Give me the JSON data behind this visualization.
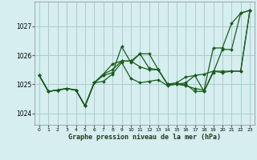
{
  "bg_color": "#d6eef0",
  "grid_color": "#aacccc",
  "line_color": "#1a5c1a",
  "xlabel": "Graphe pression niveau de la mer (hPa)",
  "xlim": [
    -0.5,
    23.5
  ],
  "ylim": [
    1023.6,
    1027.85
  ],
  "yticks": [
    1024,
    1025,
    1026,
    1027
  ],
  "series": [
    [
      1025.3,
      1024.75,
      1024.8,
      1024.85,
      1024.8,
      1024.25,
      1025.05,
      1025.3,
      1025.4,
      1026.3,
      1025.75,
      1026.05,
      1026.05,
      1025.5,
      1025.0,
      1025.0,
      1024.95,
      1024.85,
      1024.8,
      1026.25,
      1026.25,
      1027.1,
      1027.45,
      1027.55
    ],
    [
      1025.3,
      1024.75,
      1024.8,
      1024.85,
      1024.8,
      1024.25,
      1025.05,
      1025.35,
      1025.5,
      1025.8,
      1025.8,
      1026.05,
      1025.55,
      1025.5,
      1025.0,
      1025.0,
      1025.05,
      1025.3,
      1024.75,
      1025.4,
      1026.2,
      1026.2,
      1027.45,
      1027.55
    ],
    [
      1025.3,
      1024.75,
      1024.8,
      1024.85,
      1024.8,
      1024.25,
      1025.05,
      1025.35,
      1025.7,
      1025.8,
      1025.8,
      1025.6,
      1025.5,
      1025.5,
      1025.0,
      1025.05,
      1025.25,
      1025.3,
      1025.35,
      1025.45,
      1025.4,
      1025.45,
      1025.45,
      1027.55
    ],
    [
      1025.3,
      1024.75,
      1024.8,
      1024.85,
      1024.8,
      1024.25,
      1025.05,
      1025.1,
      1025.35,
      1025.75,
      1025.2,
      1025.05,
      1025.1,
      1025.15,
      1024.95,
      1025.0,
      1025.0,
      1024.75,
      1024.75,
      1025.45,
      1025.45,
      1025.45,
      1025.45,
      1027.55
    ]
  ],
  "marker_indices": [
    [
      0,
      1,
      2,
      3,
      4,
      5,
      6,
      7,
      8,
      9,
      10,
      11,
      12,
      13,
      14,
      15,
      16,
      17,
      18,
      19,
      20,
      21,
      22,
      23
    ],
    [
      0,
      1,
      2,
      3,
      4,
      5,
      6,
      7,
      8,
      9,
      10,
      11,
      12,
      13,
      14,
      15,
      16,
      17,
      18,
      19,
      20,
      21,
      22,
      23
    ],
    [
      0,
      1,
      2,
      3,
      4,
      5,
      6,
      7,
      8,
      9,
      10,
      11,
      12,
      13,
      14,
      15,
      16,
      17,
      18,
      19,
      20,
      21,
      22,
      23
    ],
    [
      0,
      1,
      2,
      3,
      4,
      5,
      6,
      7,
      8,
      9,
      10,
      11,
      12,
      13,
      14,
      15,
      16,
      17,
      18,
      19,
      20,
      21,
      22,
      23
    ]
  ]
}
